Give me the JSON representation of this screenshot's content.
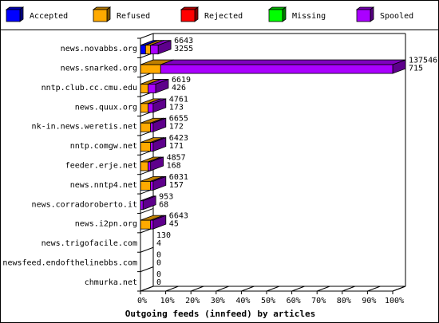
{
  "chart_data": {
    "type": "bar",
    "title": "Outgoing feeds (innfeed) by articles",
    "legend": {
      "placement": "top",
      "items": [
        {
          "name": "Accepted",
          "color": "#0000ff"
        },
        {
          "name": "Refused",
          "color": "#ffaa00"
        },
        {
          "name": "Rejected",
          "color": "#ff0000"
        },
        {
          "name": "Missing",
          "color": "#00ff00"
        },
        {
          "name": "Spooled",
          "color": "#aa00ff"
        }
      ]
    },
    "x_ticks": [
      "0%",
      "10%",
      "20%",
      "30%",
      "40%",
      "50%",
      "60%",
      "70%",
      "80%",
      "90%",
      "100%"
    ],
    "xlim": [
      0,
      100
    ],
    "grid": false,
    "rows": [
      {
        "label": "news.novabbs.org",
        "total": "6643",
        "spooled": "3255",
        "accepted_pct": 2,
        "refused_pct": 2,
        "spooled_pct": 3
      },
      {
        "label": "news.snarked.org",
        "total": "137546",
        "spooled": "715",
        "accepted_pct": 0,
        "refused_pct": 8,
        "spooled_pct": 92
      },
      {
        "label": "nntp.club.cc.cmu.edu",
        "total": "6619",
        "spooled": "426",
        "accepted_pct": 0,
        "refused_pct": 3,
        "spooled_pct": 3
      },
      {
        "label": "news.quux.org",
        "total": "4761",
        "spooled": "173",
        "accepted_pct": 0,
        "refused_pct": 3,
        "spooled_pct": 2
      },
      {
        "label": "nk-in.news.weretis.net",
        "total": "6655",
        "spooled": "172",
        "accepted_pct": 0,
        "refused_pct": 4,
        "spooled_pct": 1
      },
      {
        "label": "nntp.comgw.net",
        "total": "6423",
        "spooled": "171",
        "accepted_pct": 0,
        "refused_pct": 4,
        "spooled_pct": 1
      },
      {
        "label": "feeder.erje.net",
        "total": "4857",
        "spooled": "168",
        "accepted_pct": 0,
        "refused_pct": 3,
        "spooled_pct": 1
      },
      {
        "label": "news.nntp4.net",
        "total": "6031",
        "spooled": "157",
        "accepted_pct": 0,
        "refused_pct": 4,
        "spooled_pct": 1
      },
      {
        "label": "news.corradoroberto.it",
        "total": "953",
        "spooled": "68",
        "accepted_pct": 0,
        "refused_pct": 0,
        "spooled_pct": 1
      },
      {
        "label": "news.i2pn.org",
        "total": "6643",
        "spooled": "45",
        "accepted_pct": 0,
        "refused_pct": 4,
        "spooled_pct": 1
      },
      {
        "label": "news.trigofacile.com",
        "total": "130",
        "spooled": "4",
        "accepted_pct": 0,
        "refused_pct": 0,
        "spooled_pct": 0
      },
      {
        "label": "newsfeed.endofthelinebbs.com",
        "total": "0",
        "spooled": "0",
        "accepted_pct": 0,
        "refused_pct": 0,
        "spooled_pct": 0
      },
      {
        "label": "chmurka.net",
        "total": "0",
        "spooled": "0",
        "accepted_pct": 0,
        "refused_pct": 0,
        "spooled_pct": 0
      }
    ]
  }
}
